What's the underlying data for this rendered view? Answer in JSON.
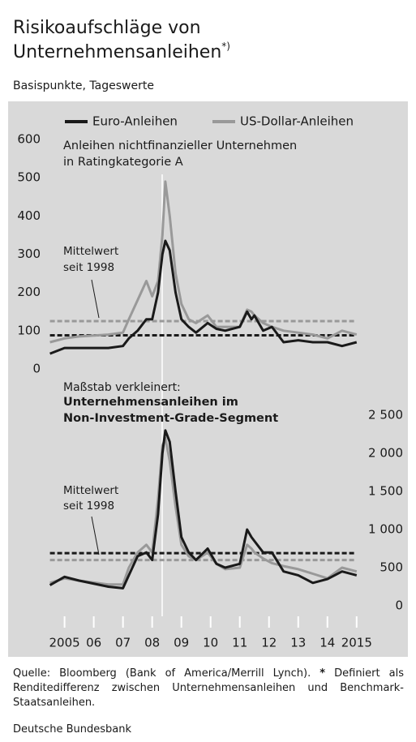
{
  "header": {
    "title_lines": [
      "Risikoaufschläge von",
      "Unternehmensanleihen"
    ],
    "title_note": "*)",
    "subtitle": "Basispunkte, Tageswerte"
  },
  "chart_data": [
    {
      "type": "line",
      "label_lines": [
        "Anleihen nichtfinanzieller Unternehmen",
        "in Ratingkategorie A"
      ],
      "annotation": [
        "Mittelwert",
        "seit 1998"
      ],
      "x": [
        2005,
        2005.5,
        2006,
        2007,
        2007.5,
        2007.7,
        2008,
        2008.3,
        2008.5,
        2008.7,
        2008.85,
        2008.95,
        2009.1,
        2009.3,
        2009.5,
        2009.75,
        2010,
        2010.4,
        2010.7,
        2011,
        2011.5,
        2011.75,
        2011.9,
        2012,
        2012.3,
        2012.6,
        2013,
        2013.5,
        2014,
        2014.5,
        2015,
        2015.5
      ],
      "series": [
        {
          "name": "Euro-Anleihen",
          "color": "#1a1a1a",
          "values": [
            40,
            55,
            55,
            55,
            60,
            80,
            100,
            130,
            130,
            200,
            300,
            335,
            310,
            200,
            130,
            110,
            95,
            120,
            105,
            100,
            110,
            150,
            130,
            140,
            100,
            110,
            70,
            75,
            70,
            70,
            60,
            70
          ]
        },
        {
          "name": "US-Dollar-Anleihen",
          "color": "#999999",
          "values": [
            70,
            80,
            85,
            90,
            95,
            130,
            180,
            230,
            190,
            230,
            350,
            490,
            400,
            250,
            170,
            130,
            120,
            140,
            110,
            110,
            110,
            155,
            150,
            140,
            120,
            110,
            100,
            95,
            90,
            80,
            100,
            90
          ]
        }
      ],
      "reference_lines": [
        {
          "value": 88,
          "color": "#1a1a1a"
        },
        {
          "value": 125,
          "color": "#999999"
        }
      ],
      "xlim": [
        2004.9,
        2015.95
      ],
      "ylim": [
        0,
        600
      ],
      "yticks": [
        0,
        100,
        200,
        300,
        400,
        500,
        600
      ],
      "y_axis_side": "left",
      "legend": "top"
    },
    {
      "type": "line",
      "label_note": "Maßstab verkleinert:",
      "label_lines": [
        "Unternehmensanleihen im",
        "Non-Investment-Grade-Segment"
      ],
      "annotation": [
        "Mittelwert",
        "seit 1998"
      ],
      "x": [
        2005,
        2005.5,
        2006,
        2007,
        2007.5,
        2007.7,
        2008,
        2008.3,
        2008.5,
        2008.7,
        2008.85,
        2008.95,
        2009.1,
        2009.3,
        2009.5,
        2009.75,
        2010,
        2010.4,
        2010.7,
        2011,
        2011.5,
        2011.75,
        2011.9,
        2012,
        2012.3,
        2012.6,
        2013,
        2013.5,
        2014,
        2014.5,
        2015,
        2015.5
      ],
      "series": [
        {
          "name": "Euro-Anleihen",
          "color": "#1a1a1a",
          "values": [
            270,
            380,
            330,
            250,
            230,
            400,
            650,
            700,
            600,
            1200,
            2000,
            2300,
            2150,
            1500,
            900,
            700,
            600,
            750,
            550,
            500,
            550,
            1000,
            900,
            850,
            700,
            700,
            450,
            400,
            300,
            350,
            450,
            400
          ]
        },
        {
          "name": "US-Dollar-Anleihen",
          "color": "#999999",
          "values": [
            300,
            360,
            330,
            280,
            280,
            500,
            700,
            800,
            700,
            1400,
            2100,
            2200,
            1900,
            1300,
            800,
            650,
            600,
            700,
            550,
            480,
            500,
            800,
            750,
            700,
            620,
            560,
            520,
            480,
            420,
            360,
            500,
            450
          ]
        }
      ],
      "reference_lines": [
        {
          "value": 690,
          "color": "#1a1a1a"
        },
        {
          "value": 600,
          "color": "#999999"
        }
      ],
      "xlim": [
        2004.9,
        2015.95
      ],
      "ylim": [
        0,
        2500
      ],
      "yticks": [
        0,
        500,
        {
          "value": 1000,
          "label": "1 000"
        },
        {
          "value": 1500,
          "label": "1 500"
        },
        {
          "value": 2000,
          "label": "2 000"
        },
        {
          "value": 2500,
          "label": "2 500"
        }
      ],
      "y_axis_side": "right",
      "xticks": [
        {
          "value": 2005.5,
          "label": "2005"
        },
        {
          "value": 2006.5,
          "label": "06"
        },
        {
          "value": 2007.5,
          "label": "07"
        },
        {
          "value": 2008.5,
          "label": "08"
        },
        {
          "value": 2009.5,
          "label": "09"
        },
        {
          "value": 2010.5,
          "label": "10"
        },
        {
          "value": 2011.5,
          "label": "11"
        },
        {
          "value": 2012.5,
          "label": "12"
        },
        {
          "value": 2013.5,
          "label": "13"
        },
        {
          "value": 2014.5,
          "label": "14"
        },
        {
          "value": 2015.5,
          "label": "2015"
        }
      ]
    }
  ],
  "footer": {
    "source_prefix": "Quelle: Bloomberg (Bank of America/Merrill Lynch).",
    "source_star": "*",
    "source_text": "Definiert als Renditedifferenz zwischen Unternehmensanleihen und Benchmark-Staatsanleihen.",
    "publisher": "Deutsche Bundesbank"
  }
}
